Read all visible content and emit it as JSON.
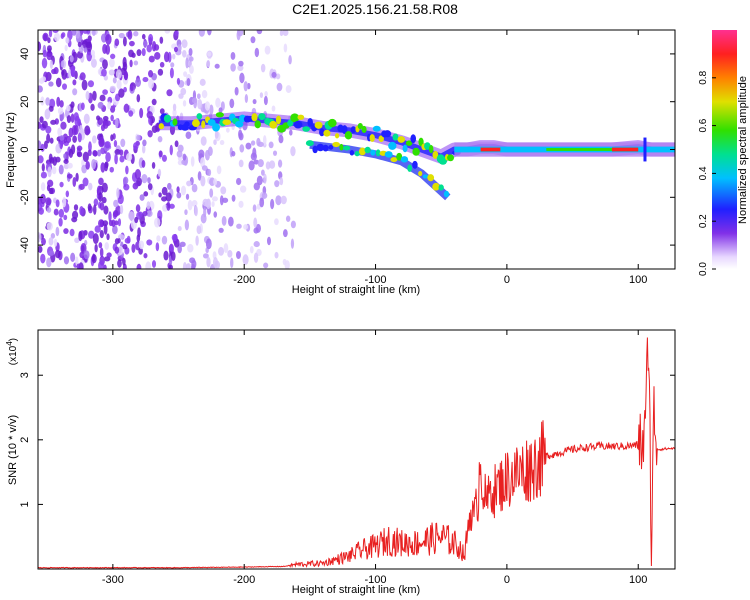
{
  "title": "C2E1.2025.156.21.58.R08",
  "chart_data": [
    {
      "type": "heatmap",
      "xlabel": "Height of straight line (km)",
      "ylabel": "Frequency (Hz)",
      "xlim": [
        -357,
        128
      ],
      "ylim": [
        -50,
        50
      ],
      "xticks": [
        -300,
        -200,
        -100,
        0,
        100
      ],
      "yticks": [
        -40,
        -20,
        0,
        20,
        40
      ],
      "colorbar": {
        "label": "Normalized spectral amplitude",
        "range": [
          0,
          1
        ],
        "ticks": [
          0.0,
          0.2,
          0.4,
          0.6,
          0.8
        ],
        "colors": [
          "#ffffff",
          "#e8d8ff",
          "#8030e8",
          "#2020ff",
          "#00c0ff",
          "#00e090",
          "#30e000",
          "#e0e000",
          "#ff8000",
          "#ff2020",
          "#ff3090"
        ]
      },
      "ridge": [
        [
          -265,
          11
        ],
        [
          -240,
          11
        ],
        [
          -220,
          12
        ],
        [
          -200,
          13
        ],
        [
          -180,
          12
        ],
        [
          -160,
          11
        ],
        [
          -140,
          9
        ],
        [
          -120,
          8
        ],
        [
          -100,
          6
        ],
        [
          -80,
          3
        ],
        [
          -65,
          0
        ],
        [
          -50,
          -3
        ],
        [
          -40,
          0
        ],
        [
          -30,
          0
        ],
        [
          -20,
          1
        ],
        [
          -10,
          1
        ],
        [
          0,
          0
        ],
        [
          20,
          0
        ],
        [
          40,
          0
        ],
        [
          60,
          0
        ],
        [
          80,
          0
        ],
        [
          100,
          1
        ],
        [
          110,
          0
        ],
        [
          128,
          0
        ]
      ],
      "branch": [
        [
          -150,
          2
        ],
        [
          -120,
          0
        ],
        [
          -100,
          -2
        ],
        [
          -80,
          -5
        ],
        [
          -65,
          -10
        ],
        [
          -55,
          -15
        ],
        [
          -45,
          -20
        ]
      ]
    },
    {
      "type": "line",
      "xlabel": "Height of straight line (km)",
      "ylabel": "SNR (10 * v/v)",
      "y_multiplier": "(x10",
      "y_multiplier_exp": "4",
      "xlim": [
        -357,
        128
      ],
      "ylim": [
        0,
        3.7
      ],
      "xticks": [
        -300,
        -200,
        -100,
        0,
        100
      ],
      "yticks": [
        1,
        2,
        3
      ],
      "color": "#e82020",
      "series": [
        {
          "x": [
            -357,
            -300,
            -250,
            -200,
            -170,
            -160,
            -140,
            -120,
            -110,
            -100,
            -90,
            -80,
            -70,
            -60,
            -50,
            -45,
            -40,
            -35,
            -32,
            -30,
            -28,
            -25,
            -22,
            -20,
            -18,
            -15,
            -12,
            -10,
            -5,
            0,
            10,
            20,
            30,
            40,
            50,
            60,
            70,
            80,
            90,
            100,
            105,
            108,
            110,
            112,
            115,
            120,
            128
          ],
          "y": [
            0.02,
            0.02,
            0.02,
            0.03,
            0.04,
            0.07,
            0.09,
            0.2,
            0.3,
            0.35,
            0.45,
            0.4,
            0.4,
            0.45,
            0.5,
            0.45,
            0.4,
            0.3,
            0.2,
            0.6,
            0.9,
            0.8,
            1.1,
            1.8,
            1.2,
            1.0,
            1.3,
            1.2,
            1.3,
            1.4,
            1.5,
            1.6,
            1.75,
            1.8,
            1.85,
            1.88,
            1.9,
            1.9,
            1.9,
            1.92,
            2.0,
            3.7,
            0.3,
            2.4,
            1.85,
            1.86,
            1.87
          ]
        }
      ]
    }
  ]
}
